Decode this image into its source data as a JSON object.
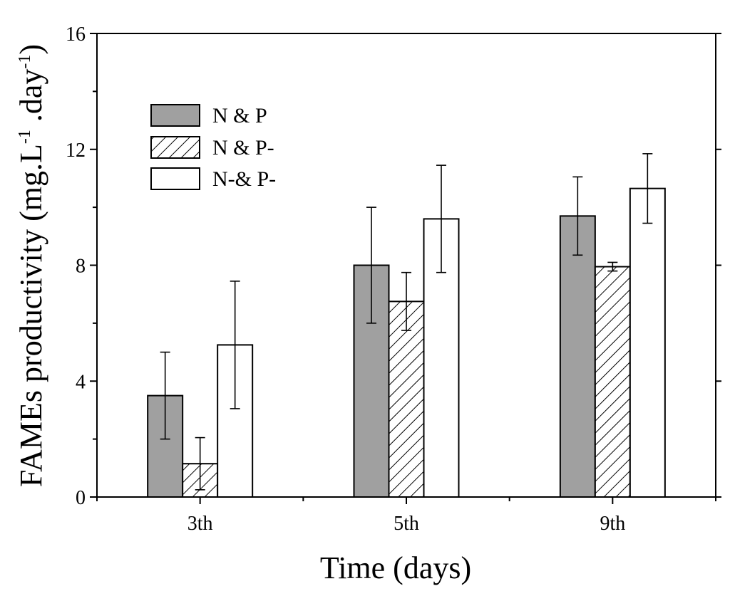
{
  "chart_data": {
    "type": "bar",
    "title": "",
    "xlabel": "Time (days)",
    "ylabel_main": "FAMEs productivity (mg.L",
    "ylabel_sup1": "-1",
    "ylabel_mid": " .day",
    "ylabel_sup2": "-1",
    "ylabel_end": ")",
    "categories": [
      "3th",
      "5th",
      "9th"
    ],
    "ylim": [
      0,
      16
    ],
    "yticks": [
      0,
      4,
      8,
      12,
      16
    ],
    "ytick_labels": [
      "0",
      "4",
      "8",
      "12",
      "16"
    ],
    "legend_position": "upper-left",
    "series": [
      {
        "name": "N & P",
        "fill": "solid-gray",
        "color": "#a0a0a0",
        "values": [
          3.5,
          8.0,
          9.7
        ],
        "errors": [
          1.5,
          2.0,
          1.35
        ]
      },
      {
        "name": "N & P-",
        "fill": "hatched",
        "color": "#ffffff",
        "values": [
          1.15,
          6.75,
          7.95
        ],
        "errors": [
          0.9,
          1.0,
          0.15
        ]
      },
      {
        "name": "N-& P-",
        "fill": "white",
        "color": "#ffffff",
        "values": [
          5.25,
          9.6,
          10.65
        ],
        "errors": [
          2.2,
          1.85,
          1.2
        ]
      }
    ]
  }
}
